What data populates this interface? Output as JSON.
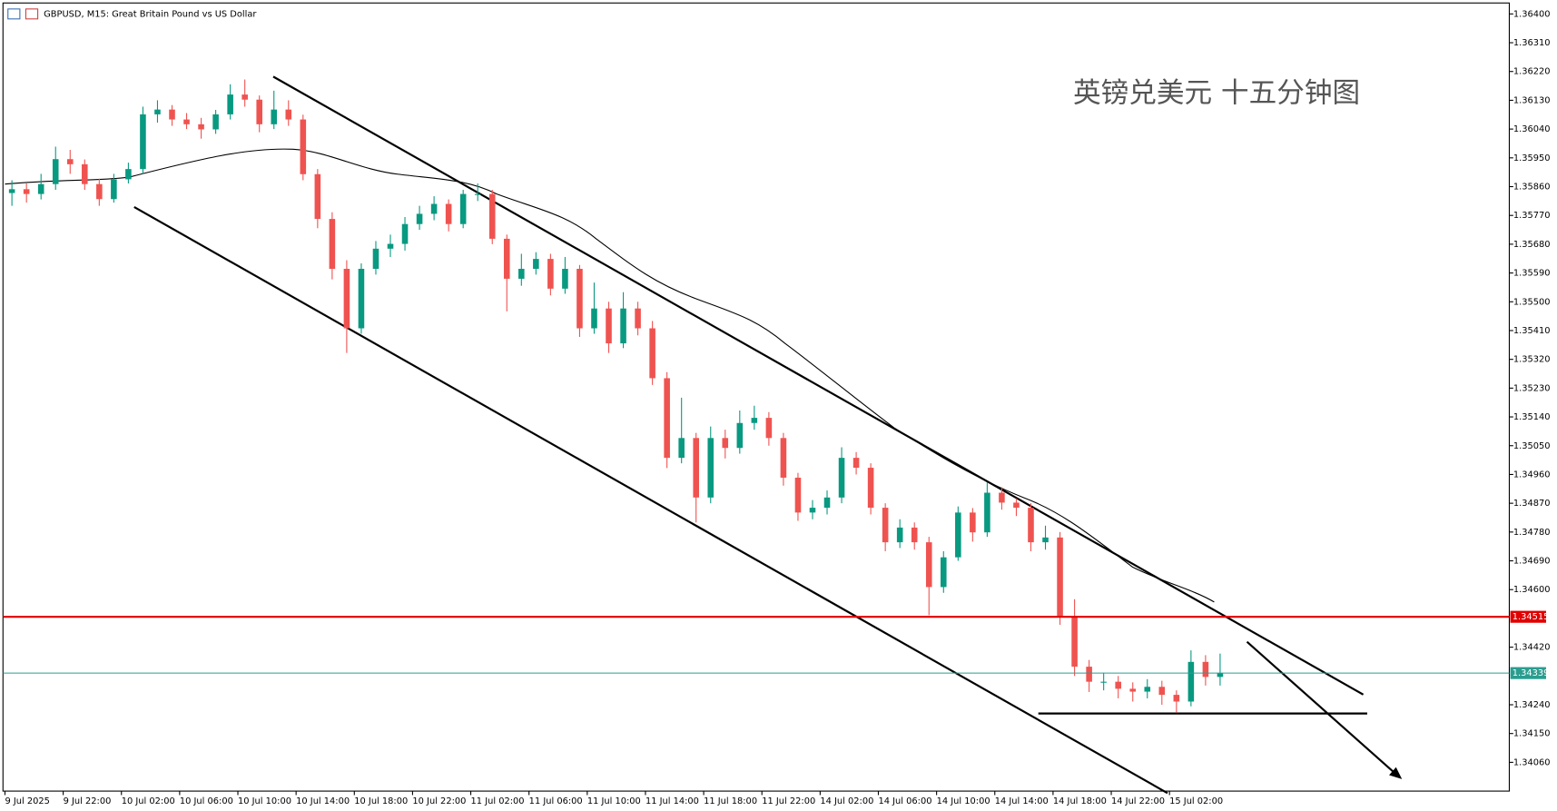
{
  "chart_data": {
    "type": "candlestick",
    "title": "GBPUSD, M15:  Great Britain Pound vs US Dollar",
    "annotation": "英镑兑美元 十五分钟图",
    "x_labels": [
      "9 Jul 2025",
      "9 Jul 22:00",
      "10 Jul 02:00",
      "10 Jul 06:00",
      "10 Jul 10:00",
      "10 Jul 14:00",
      "10 Jul 18:00",
      "10 Jul 22:00",
      "11 Jul 02:00",
      "11 Jul 06:00",
      "11 Jul 10:00",
      "11 Jul 14:00",
      "11 Jul 18:00",
      "11 Jul 22:00",
      "14 Jul 02:00",
      "14 Jul 06:00",
      "14 Jul 10:00",
      "14 Jul 14:00",
      "14 Jul 18:00",
      "14 Jul 22:00",
      "15 Jul 02:00"
    ],
    "open": [
      1.3584,
      1.35852,
      1.35837,
      1.35868,
      1.35946,
      1.3593,
      1.35868,
      1.35821,
      1.35883,
      1.35915,
      1.36086,
      1.36101,
      1.3607,
      1.36055,
      1.36039,
      1.36086,
      1.36148,
      1.36132,
      1.36055,
      1.36101,
      1.3607,
      1.35899,
      1.35759,
      1.35603,
      1.35417,
      1.35603,
      1.35666,
      1.35681,
      1.35743,
      1.35775,
      1.35806,
      1.35743,
      1.35837,
      1.35837,
      1.35697,
      1.35572,
      1.35603,
      1.35634,
      1.35541,
      1.35603,
      1.35417,
      1.35479,
      1.3537,
      1.35479,
      1.35417,
      1.35261,
      1.35012,
      1.35074,
      1.34888,
      1.35074,
      1.35043,
      1.35121,
      1.35137,
      1.35074,
      1.3495,
      1.34841,
      1.34856,
      1.34888,
      1.35012,
      1.34981,
      1.34856,
      1.34748,
      1.34794,
      1.34748,
      1.34608,
      1.34701,
      1.34841,
      1.34779,
      1.34903,
      1.34872,
      1.34856,
      1.34748,
      1.34763,
      1.34514,
      1.34359,
      1.34312,
      1.34312,
      1.3429,
      1.34281,
      1.34296,
      1.34271,
      1.3425,
      1.34374,
      1.34327
    ],
    "high": [
      1.3588,
      1.3587,
      1.359,
      1.35985,
      1.35975,
      1.35945,
      1.35885,
      1.359,
      1.35935,
      1.3611,
      1.3613,
      1.36115,
      1.3609,
      1.36075,
      1.361,
      1.3618,
      1.36195,
      1.36145,
      1.3616,
      1.3613,
      1.36085,
      1.35915,
      1.3578,
      1.3563,
      1.3562,
      1.3569,
      1.3571,
      1.35765,
      1.358,
      1.3583,
      1.3582,
      1.3585,
      1.3587,
      1.3585,
      1.3571,
      1.3565,
      1.35655,
      1.3565,
      1.3564,
      1.35615,
      1.3556,
      1.355,
      1.3553,
      1.355,
      1.3544,
      1.3528,
      1.352,
      1.3509,
      1.3511,
      1.351,
      1.3516,
      1.35175,
      1.35155,
      1.3509,
      1.34965,
      1.3488,
      1.3491,
      1.35045,
      1.3503,
      1.34995,
      1.3487,
      1.3482,
      1.3481,
      1.34765,
      1.3472,
      1.3486,
      1.34855,
      1.34935,
      1.3492,
      1.34885,
      1.3487,
      1.348,
      1.3478,
      1.3457,
      1.3438,
      1.3434,
      1.3433,
      1.3431,
      1.3432,
      1.34315,
      1.34285,
      1.3441,
      1.34395,
      1.344
    ],
    "low": [
      1.358,
      1.3581,
      1.3582,
      1.3585,
      1.359,
      1.3585,
      1.358,
      1.3581,
      1.3587,
      1.359,
      1.3606,
      1.3605,
      1.3604,
      1.3601,
      1.36025,
      1.3607,
      1.3611,
      1.3603,
      1.3604,
      1.3605,
      1.3588,
      1.3573,
      1.3557,
      1.3534,
      1.354,
      1.35585,
      1.3564,
      1.3566,
      1.35725,
      1.35755,
      1.3572,
      1.3573,
      1.35815,
      1.3568,
      1.3547,
      1.3555,
      1.35585,
      1.3552,
      1.35525,
      1.3539,
      1.354,
      1.3534,
      1.35355,
      1.35395,
      1.3524,
      1.3498,
      1.34995,
      1.3481,
      1.3487,
      1.3501,
      1.35025,
      1.351,
      1.3505,
      1.34925,
      1.34815,
      1.3482,
      1.34835,
      1.3487,
      1.3496,
      1.34835,
      1.3472,
      1.3473,
      1.34725,
      1.3452,
      1.3459,
      1.3469,
      1.3475,
      1.34765,
      1.3485,
      1.3483,
      1.3472,
      1.34725,
      1.3449,
      1.3433,
      1.3428,
      1.34285,
      1.3426,
      1.3425,
      1.3426,
      1.3424,
      1.34215,
      1.34235,
      1.343,
      1.343
    ],
    "close": [
      1.35852,
      1.35837,
      1.35868,
      1.35946,
      1.3593,
      1.35868,
      1.35821,
      1.35883,
      1.35915,
      1.36086,
      1.36101,
      1.3607,
      1.36055,
      1.36039,
      1.36086,
      1.36148,
      1.36132,
      1.36055,
      1.36101,
      1.3607,
      1.35899,
      1.35759,
      1.35603,
      1.35417,
      1.35603,
      1.35666,
      1.35681,
      1.35743,
      1.35775,
      1.35806,
      1.35743,
      1.35837,
      1.35837,
      1.35697,
      1.35572,
      1.35603,
      1.35634,
      1.35541,
      1.35603,
      1.35417,
      1.35479,
      1.3537,
      1.35479,
      1.35417,
      1.35261,
      1.35012,
      1.35074,
      1.34888,
      1.35074,
      1.35043,
      1.35121,
      1.35137,
      1.35074,
      1.3495,
      1.34841,
      1.34856,
      1.34888,
      1.35012,
      1.34981,
      1.34856,
      1.34748,
      1.34794,
      1.34748,
      1.34608,
      1.34701,
      1.34841,
      1.34779,
      1.34903,
      1.34872,
      1.34856,
      1.34748,
      1.34763,
      1.34514,
      1.34359,
      1.34312,
      1.34312,
      1.3429,
      1.34281,
      1.34296,
      1.34271,
      1.3425,
      1.34374,
      1.34327,
      1.34339
    ],
    "up_color": "#089981",
    "down_color": "#ef5350",
    "ylim": [
      1.3397,
      1.36428
    ],
    "yticks": [
      {
        "value": 1.364,
        "label": "1.36400"
      },
      {
        "value": 1.3631,
        "label": "1.36310"
      },
      {
        "value": 1.3622,
        "label": "1.36220"
      },
      {
        "value": 1.3613,
        "label": "1.36130"
      },
      {
        "value": 1.3604,
        "label": "1.36040"
      },
      {
        "value": 1.3595,
        "label": "1.35950"
      },
      {
        "value": 1.3586,
        "label": "1.35860"
      },
      {
        "value": 1.3577,
        "label": "1.35770"
      },
      {
        "value": 1.3568,
        "label": "1.35680"
      },
      {
        "value": 1.3559,
        "label": "1.35590"
      },
      {
        "value": 1.355,
        "label": "1.35500"
      },
      {
        "value": 1.3541,
        "label": "1.35410"
      },
      {
        "value": 1.3532,
        "label": "1.35320"
      },
      {
        "value": 1.3523,
        "label": "1.35230"
      },
      {
        "value": 1.3514,
        "label": "1.35140"
      },
      {
        "value": 1.3505,
        "label": "1.35050"
      },
      {
        "value": 1.3496,
        "label": "1.34960"
      },
      {
        "value": 1.3487,
        "label": "1.34870"
      },
      {
        "value": 1.3478,
        "label": "1.34780"
      },
      {
        "value": 1.3469,
        "label": "1.34690"
      },
      {
        "value": 1.346,
        "label": "1.34600"
      },
      {
        "value": 1.3442,
        "label": "1.34420"
      },
      {
        "value": 1.3424,
        "label": "1.34240"
      },
      {
        "value": 1.3415,
        "label": "1.34150"
      },
      {
        "value": 1.3406,
        "label": "1.34060"
      }
    ],
    "hlines": [
      {
        "value": 1.34515,
        "label": "1.34515",
        "color": "#e00000"
      },
      {
        "value": 1.34339,
        "label": "1.34339",
        "color": "#2a9d8f"
      }
    ]
  }
}
